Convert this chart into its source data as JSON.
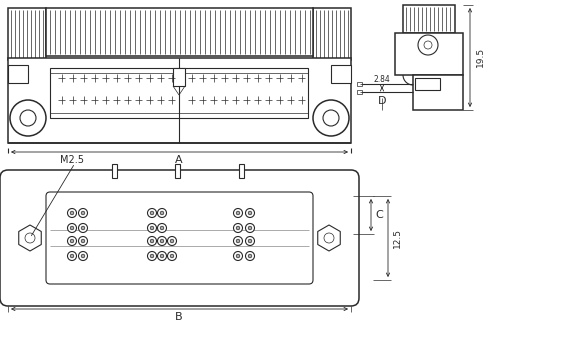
{
  "bg_color": "#ffffff",
  "line_color": "#2a2a2a",
  "fig_width": 5.64,
  "fig_height": 3.49,
  "dpi": 100,
  "labels": {
    "A": "A",
    "B": "B",
    "C": "C",
    "D": "D",
    "M25": "M2.5",
    "dim_195": "19.5",
    "dim_284": "2.84",
    "dim_125": "12.5"
  }
}
